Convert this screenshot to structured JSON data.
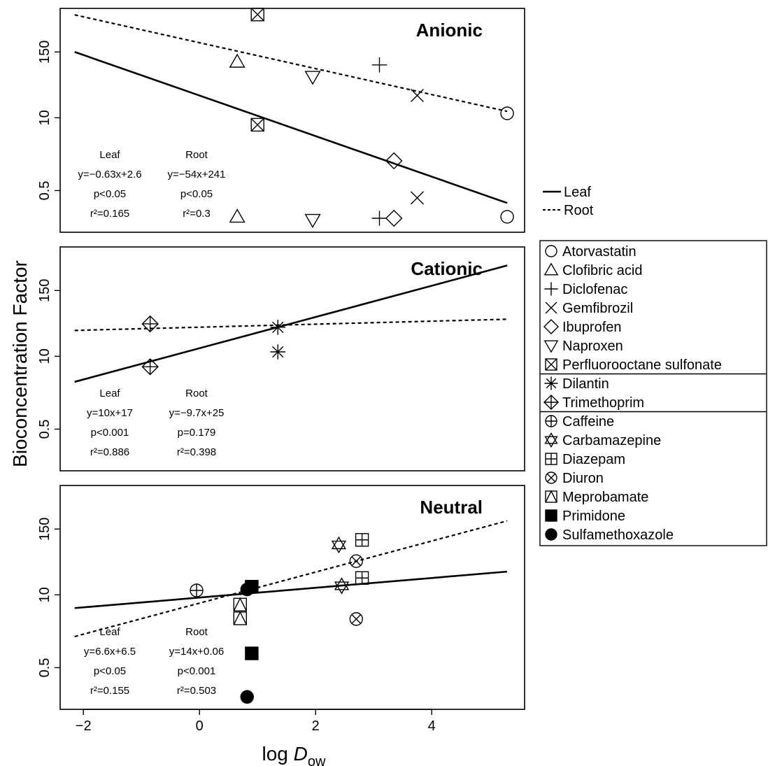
{
  "figure": {
    "ylabel": "Bioconcentration Factor",
    "xlabel_main": "log ",
    "xlabel_italic": "D",
    "xlabel_sub": "ow"
  },
  "line_legend": [
    {
      "label": "Leaf",
      "style": "solid"
    },
    {
      "label": "Root",
      "style": "dashed"
    }
  ],
  "chart_data": {
    "type": "scatter",
    "xlim": [
      -2.4,
      5.6
    ],
    "x_ticks": [
      -2,
      0,
      2,
      4
    ],
    "x_tick_labels": [
      "−2",
      "0",
      "2",
      "4"
    ],
    "y_scale": "log",
    "ylim": [
      0.09,
      900
    ],
    "y_ticks": [
      0.5,
      10,
      150
    ],
    "y_tick_labels": [
      "0.5",
      "10",
      "150"
    ],
    "grid": false,
    "legend_position": "right",
    "panels": [
      {
        "name": "Anionic",
        "title": "Anionic",
        "leaf_stats": {
          "label": "Leaf",
          "eq": "y=−0.63x+2.6",
          "p": "p<0.05",
          "r2": "r²=0.165"
        },
        "root_stats": {
          "label": "Root",
          "eq": "y=−54x+241",
          "p": "p<0.05",
          "r2": "r²=0.3"
        },
        "leaf_line": {
          "x": [
            -2.15,
            5.3
          ],
          "y": [
            150,
            0.3
          ]
        },
        "root_line": {
          "x": [
            -2.15,
            5.3
          ],
          "y": [
            690,
            13
          ]
        },
        "points": [
          {
            "compound": "Atorvastatin",
            "x": 5.3,
            "y": 0.17
          },
          {
            "compound": "Atorvastatin",
            "x": 5.3,
            "y": 12
          },
          {
            "compound": "Clofibric acid",
            "x": 0.65,
            "y": 100
          },
          {
            "compound": "Clofibric acid",
            "x": 0.65,
            "y": 0.17
          },
          {
            "compound": "Diclofenac",
            "x": 3.1,
            "y": 88
          },
          {
            "compound": "Diclofenac",
            "x": 3.1,
            "y": 0.16
          },
          {
            "compound": "Gemfibrozil",
            "x": 3.75,
            "y": 25
          },
          {
            "compound": "Gemfibrozil",
            "x": 3.75,
            "y": 0.37
          },
          {
            "compound": "Ibuprofen",
            "x": 3.35,
            "y": 1.7
          },
          {
            "compound": "Ibuprofen",
            "x": 3.35,
            "y": 0.16
          },
          {
            "compound": "Naproxen",
            "x": 1.95,
            "y": 54
          },
          {
            "compound": "Naproxen",
            "x": 1.95,
            "y": 0.15
          },
          {
            "compound": "Perfluorooctane sulfonate",
            "x": 1.0,
            "y": 700
          },
          {
            "compound": "Perfluorooctane sulfonate",
            "x": 1.0,
            "y": 7.5
          }
        ]
      },
      {
        "name": "Cationic",
        "title": "Cationic",
        "leaf_stats": {
          "label": "Leaf",
          "eq": "y=10x+17",
          "p": "p<0.001",
          "r2": "r²=0.886"
        },
        "root_stats": {
          "label": "Root",
          "eq": "y=−9.7x+25",
          "p": "p=0.179",
          "r2": "r²=0.398"
        },
        "leaf_line": {
          "x": [
            -2.15,
            5.3
          ],
          "y": [
            3.5,
            420
          ]
        },
        "root_line": {
          "x": [
            -2.15,
            5.3
          ],
          "y": [
            29,
            46
          ]
        },
        "points": [
          {
            "compound": "Dilantin",
            "x": 1.35,
            "y": 33
          },
          {
            "compound": "Dilantin",
            "x": 1.35,
            "y": 12
          },
          {
            "compound": "Trimethoprim",
            "x": -0.85,
            "y": 38
          },
          {
            "compound": "Trimethoprim",
            "x": -0.85,
            "y": 6.5
          }
        ]
      },
      {
        "name": "Neutral",
        "title": "Neutral",
        "leaf_stats": {
          "label": "Leaf",
          "eq": "y=6.6x+6.5",
          "p": "p<0.05",
          "r2": "r²=0.155"
        },
        "root_stats": {
          "label": "Root",
          "eq": "y=14x+0.06",
          "p": "p<0.001",
          "r2": "r²=0.503"
        },
        "leaf_line": {
          "x": [
            -2.15,
            5.3
          ],
          "y": [
            5.8,
            26
          ]
        },
        "root_line": {
          "x": [
            -2.15,
            5.3
          ],
          "y": [
            1.8,
            210
          ]
        },
        "points": [
          {
            "compound": "Caffeine",
            "x": -0.05,
            "y": 12
          },
          {
            "compound": "Carbamazepine",
            "x": 2.4,
            "y": 78
          },
          {
            "compound": "Carbamazepine",
            "x": 2.45,
            "y": 14.5
          },
          {
            "compound": "Diazepam",
            "x": 2.8,
            "y": 96
          },
          {
            "compound": "Diazepam",
            "x": 2.8,
            "y": 20
          },
          {
            "compound": "Diuron",
            "x": 2.7,
            "y": 40
          },
          {
            "compound": "Diuron",
            "x": 2.7,
            "y": 3.7
          },
          {
            "compound": "Meprobamate",
            "x": 0.7,
            "y": 6.7
          },
          {
            "compound": "Meprobamate",
            "x": 0.7,
            "y": 3.8
          },
          {
            "compound": "Primidone",
            "x": 0.9,
            "y": 14
          },
          {
            "compound": "Primidone",
            "x": 0.9,
            "y": 0.9
          },
          {
            "compound": "Sulfamethoxazole",
            "x": 0.82,
            "y": 12.5
          },
          {
            "compound": "Sulfamethoxazole",
            "x": 0.82,
            "y": 0.15
          }
        ]
      }
    ]
  },
  "compound_legend": {
    "groups": [
      [
        {
          "label": "Atorvastatin",
          "symbol": "circle"
        },
        {
          "label": "Clofibric acid",
          "symbol": "triangle"
        },
        {
          "label": "Diclofenac",
          "symbol": "plus"
        },
        {
          "label": "Gemfibrozil",
          "symbol": "cross"
        },
        {
          "label": "Ibuprofen",
          "symbol": "diamond"
        },
        {
          "label": "Naproxen",
          "symbol": "triangle-down"
        },
        {
          "label": "Perfluorooctane sulfonate",
          "symbol": "square-cross"
        }
      ],
      [
        {
          "label": "Dilantin",
          "symbol": "asterisk"
        },
        {
          "label": "Trimethoprim",
          "symbol": "diamond-plus"
        }
      ],
      [
        {
          "label": "Caffeine",
          "symbol": "circle-plus"
        },
        {
          "label": "Carbamazepine",
          "symbol": "star-of-david"
        },
        {
          "label": "Diazepam",
          "symbol": "square-plus"
        },
        {
          "label": "Diuron",
          "symbol": "circle-cross"
        },
        {
          "label": "Meprobamate",
          "symbol": "square-triangle"
        },
        {
          "label": "Primidone",
          "symbol": "filled-square"
        },
        {
          "label": "Sulfamethoxazole",
          "symbol": "filled-circle"
        }
      ]
    ]
  }
}
